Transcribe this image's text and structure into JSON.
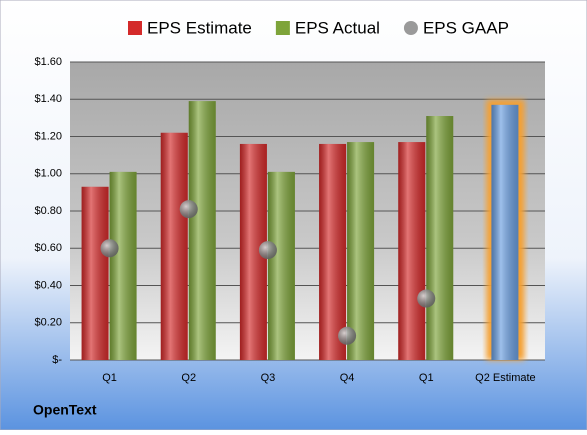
{
  "chart_data": {
    "type": "bar",
    "title": "OpenText",
    "categories": [
      "Q1",
      "Q2",
      "Q3",
      "Q4",
      "Q1",
      "Q2 Estimate"
    ],
    "series": [
      {
        "name": "EPS Estimate",
        "color": "#d42a2a",
        "values": [
          0.93,
          1.22,
          1.16,
          1.16,
          1.17,
          1.37
        ]
      },
      {
        "name": "EPS Actual",
        "color": "#7ea43a",
        "values": [
          1.01,
          1.39,
          1.01,
          1.17,
          1.31,
          null
        ]
      },
      {
        "name": "EPS GAAP",
        "color": "#9a9a9a",
        "values": [
          0.6,
          0.81,
          0.59,
          0.13,
          0.33,
          null
        ],
        "marker": "circle"
      }
    ],
    "highlight": {
      "series": 0,
      "index": 5,
      "color": "#6a9ee0",
      "glow": "#f5a030"
    },
    "ylim": [
      0,
      1.6
    ],
    "yticks": [
      {
        "value": 0,
        "label": "$-"
      },
      {
        "value": 0.2,
        "label": "$0.20"
      },
      {
        "value": 0.4,
        "label": "$0.40"
      },
      {
        "value": 0.6,
        "label": "$0.60"
      },
      {
        "value": 0.8,
        "label": "$0.80"
      },
      {
        "value": 1.0,
        "label": "$1.00"
      },
      {
        "value": 1.2,
        "label": "$1.20"
      },
      {
        "value": 1.4,
        "label": "$1.40"
      },
      {
        "value": 1.6,
        "label": "$1.60"
      }
    ],
    "grid": true,
    "legend": "top"
  }
}
